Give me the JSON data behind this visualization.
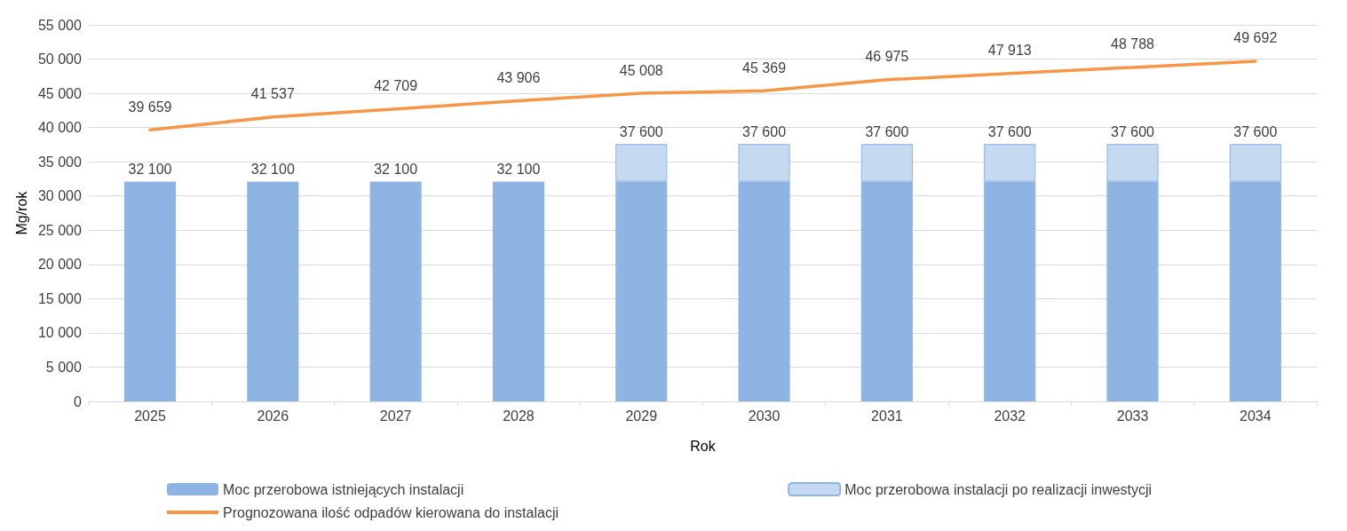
{
  "chart_data": {
    "type": "bar",
    "stacked": true,
    "xlabel": "Rok",
    "ylabel": "Mg/rok",
    "categories": [
      "2025",
      "2026",
      "2027",
      "2028",
      "2029",
      "2030",
      "2031",
      "2032",
      "2033",
      "2034"
    ],
    "series": [
      {
        "name": "Moc przerobowa istniejących instalacji",
        "color": "#8db4e2",
        "values": [
          32100,
          32100,
          32100,
          32100,
          32100,
          32100,
          32100,
          32100,
          32100,
          32100
        ]
      },
      {
        "name": "Moc przerobowa instalacji po realizacji inwestycji",
        "color": "#c5d9f1",
        "values": [
          null,
          null,
          null,
          null,
          5500,
          5500,
          5500,
          5500,
          5500,
          5500
        ]
      },
      {
        "name": "Prognozowana ilość odpadów kierowana do instalacji",
        "type": "line",
        "color": "#f79646",
        "values": [
          39659,
          41537,
          42709,
          43906,
          45008,
          45369,
          46975,
          47913,
          48788,
          49692
        ],
        "value_labels": [
          "39 659",
          "41 537",
          "42 709",
          "43 906",
          "45 008",
          "45 369",
          "46 975",
          "47 913",
          "48 788",
          "49 692"
        ]
      }
    ],
    "totals": [
      "32 100",
      "32 100",
      "32 100",
      "32 100",
      "37 600",
      "37 600",
      "37 600",
      "37 600",
      "37 600",
      "37 600"
    ],
    "ylim": [
      0,
      55000
    ],
    "yticks": [
      {
        "value": 0,
        "label": "0"
      },
      {
        "value": 5000,
        "label": "5 000"
      },
      {
        "value": 10000,
        "label": "10 000"
      },
      {
        "value": 15000,
        "label": "15 000"
      },
      {
        "value": 20000,
        "label": "20 000"
      },
      {
        "value": 25000,
        "label": "25 000"
      },
      {
        "value": 30000,
        "label": "30 000"
      },
      {
        "value": 35000,
        "label": "35 000"
      },
      {
        "value": 40000,
        "label": "40 000"
      },
      {
        "value": 45000,
        "label": "45 000"
      },
      {
        "value": 50000,
        "label": "50 000"
      },
      {
        "value": 55000,
        "label": "55 000"
      }
    ],
    "grid": "y",
    "legend": "bottom",
    "line_style": "solid",
    "marker": "none"
  }
}
